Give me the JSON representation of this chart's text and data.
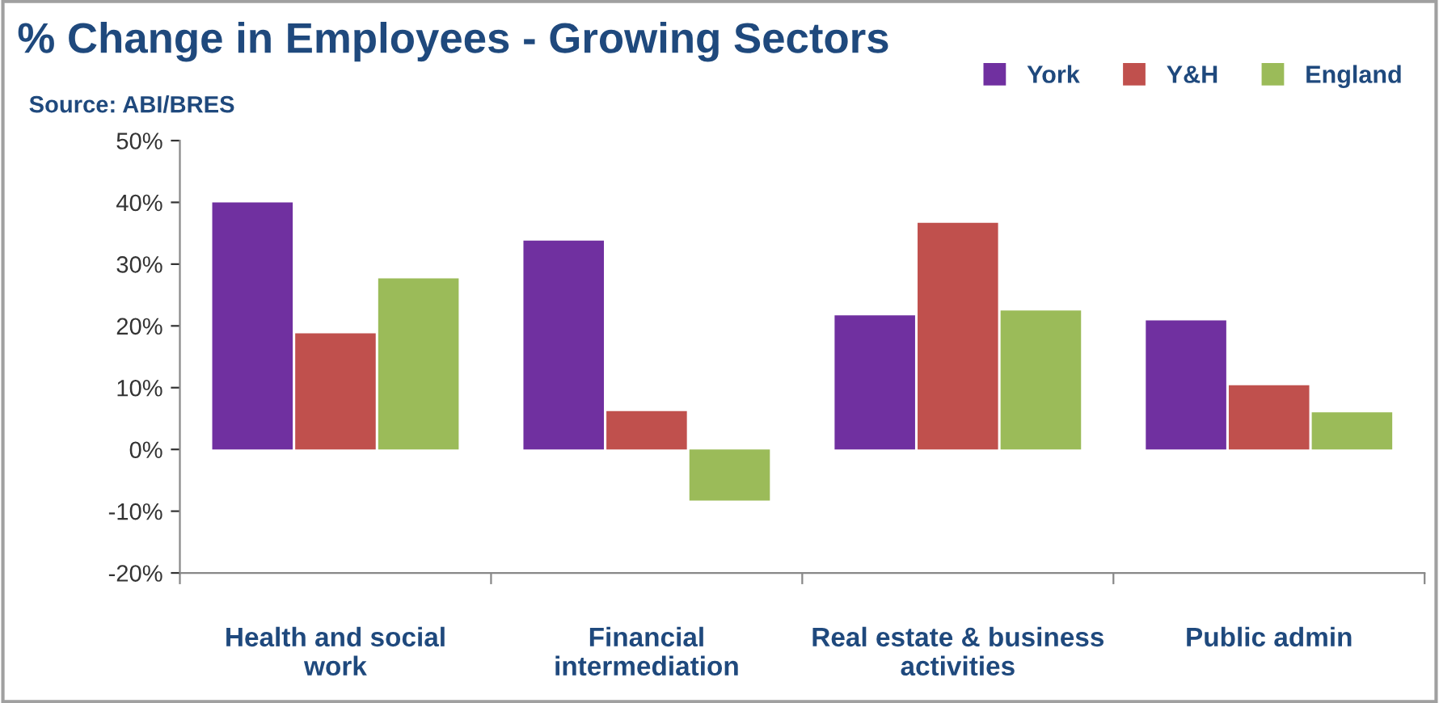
{
  "chart_data": {
    "type": "bar",
    "title": "% Change in Employees - Growing Sectors",
    "subtitle": "Source: ABI/BRES",
    "categories": [
      "Health and social\nwork",
      "Financial\nintermediation",
      "Real estate & business\nactivities",
      "Public admin"
    ],
    "series": [
      {
        "name": "York",
        "color": "#7030a0",
        "values": [
          40,
          33.8,
          21.7,
          20.9
        ]
      },
      {
        "name": "Y&H",
        "color": "#c0504d",
        "values": [
          18.8,
          6.2,
          36.7,
          10.4
        ]
      },
      {
        "name": "England",
        "color": "#9bbb59",
        "values": [
          27.7,
          -8.3,
          22.5,
          6.0
        ]
      }
    ],
    "ylim": [
      -20,
      50
    ],
    "yticks": [
      {
        "value": -20,
        "label": "-20%"
      },
      {
        "value": -10,
        "label": "-10%"
      },
      {
        "value": 0,
        "label": "0%"
      },
      {
        "value": 10,
        "label": "10%"
      },
      {
        "value": 20,
        "label": "20%"
      },
      {
        "value": 30,
        "label": "30%"
      },
      {
        "value": 40,
        "label": "40%"
      },
      {
        "value": 50,
        "label": "50%"
      }
    ],
    "legend": "top right",
    "grid": false
  }
}
